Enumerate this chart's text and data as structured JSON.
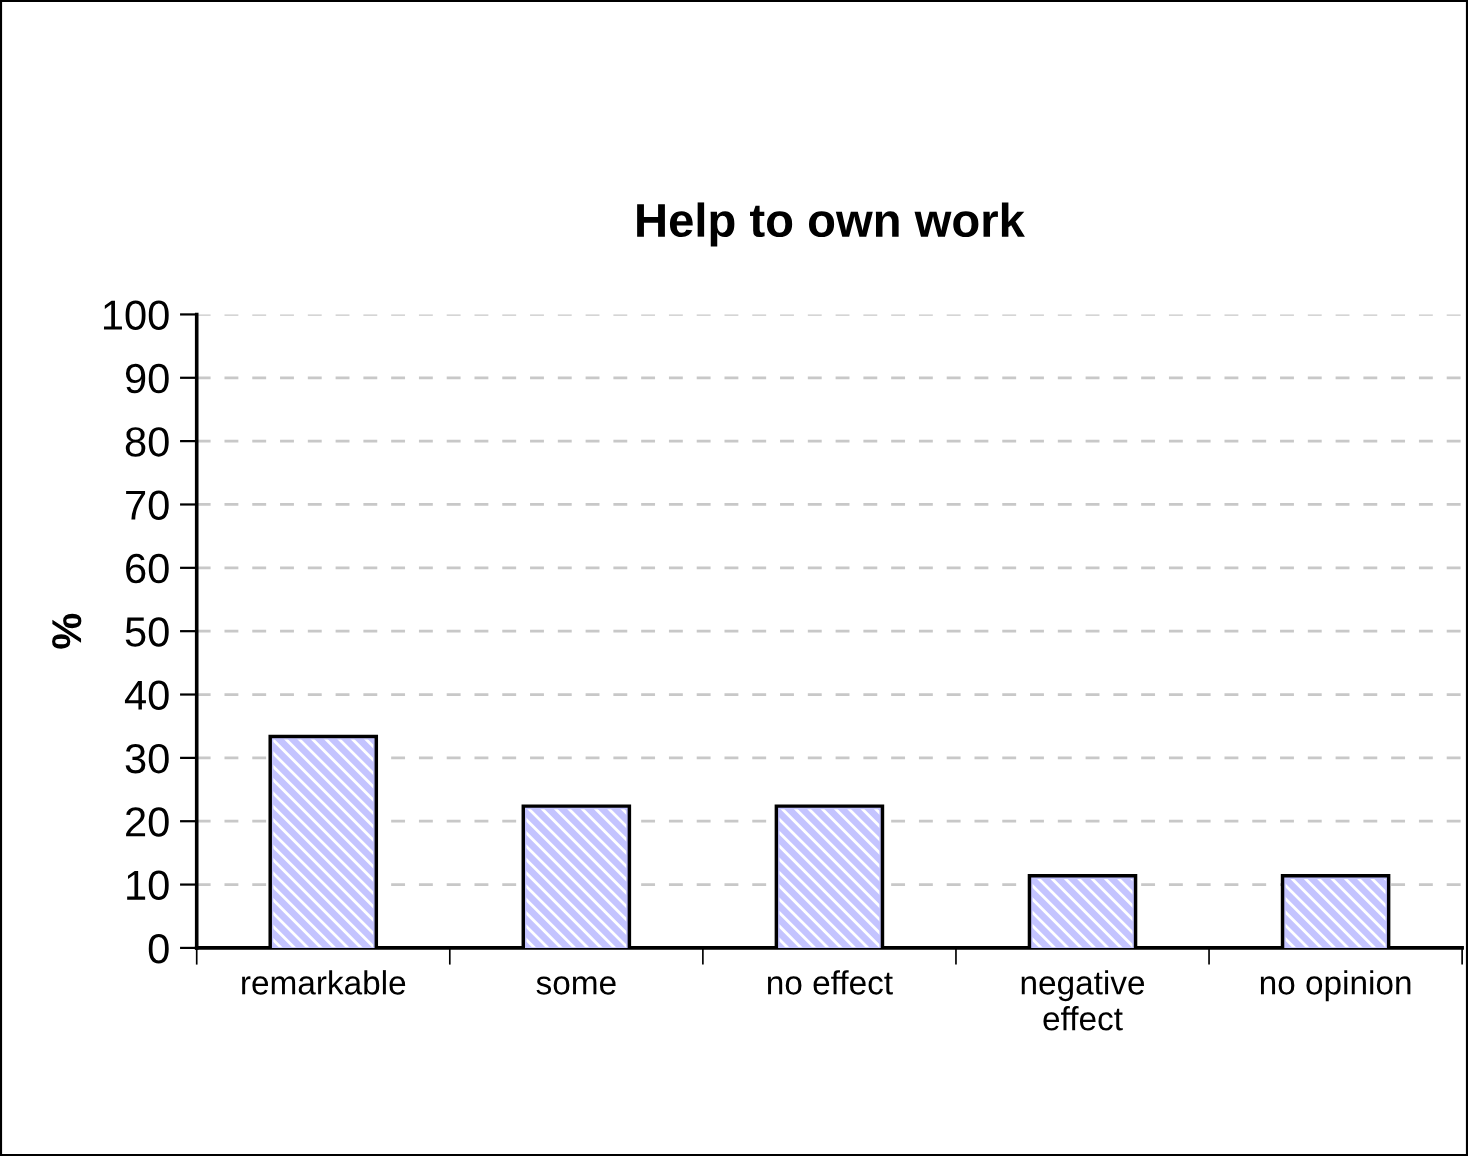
{
  "chart_data": {
    "type": "bar",
    "title": "Help to own work",
    "ylabel": "%",
    "categories": [
      "remarkable",
      "some",
      "no effect",
      "negative\neffect",
      "no opinion"
    ],
    "values": [
      33,
      22,
      22,
      11,
      11
    ],
    "color": "#c4c4ff",
    "ylim": [
      0,
      100
    ],
    "yticks": [
      0,
      10,
      20,
      30,
      40,
      50,
      60,
      70,
      80,
      90,
      100
    ],
    "grid": "y",
    "legend": false
  }
}
